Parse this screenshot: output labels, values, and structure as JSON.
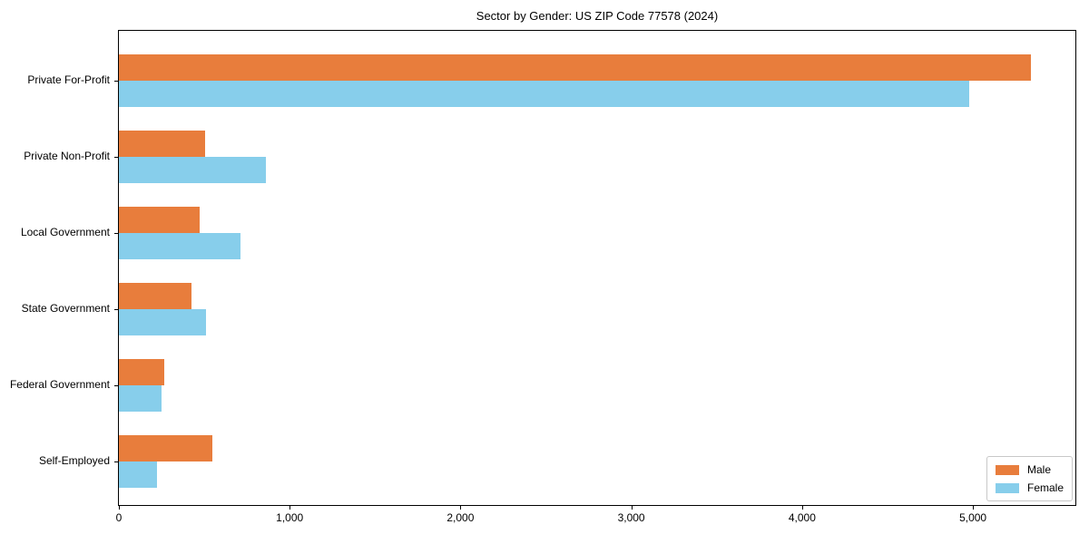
{
  "chart_data": {
    "type": "bar",
    "orientation": "horizontal",
    "title": "Sector by Gender: US ZIP Code 77578 (2024)",
    "xlabel": "",
    "ylabel": "",
    "categories": [
      "Private For-Profit",
      "Private Non-Profit",
      "Local Government",
      "State Government",
      "Federal Government",
      "Self-Employed"
    ],
    "series": [
      {
        "name": "Male",
        "color": "#e87d3c",
        "values": [
          5340,
          505,
          470,
          425,
          265,
          545
        ]
      },
      {
        "name": "Female",
        "color": "#87ceeb",
        "values": [
          4980,
          860,
          710,
          510,
          250,
          225
        ]
      }
    ],
    "xlim": [
      0,
      5600
    ],
    "x_ticks": [
      0,
      1000,
      2000,
      3000,
      4000,
      5000
    ],
    "x_tick_labels": [
      "0",
      "1,000",
      "2,000",
      "3,000",
      "4,000",
      "5,000"
    ],
    "grid": false,
    "legend_position": "lower right",
    "axis_color": "#000000",
    "background_color": "#ffffff"
  }
}
